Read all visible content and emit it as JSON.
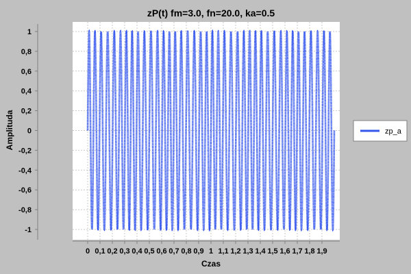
{
  "chart_data": {
    "type": "line",
    "title": "zP(t) fm=3.0, fn=20.0, ka=0.5",
    "xlabel": "Czas",
    "ylabel": "Amplituda",
    "xlim": [
      0,
      2
    ],
    "ylim": [
      -1,
      1
    ],
    "x_ticks": [
      "0",
      "0,1",
      "0,2",
      "0,3",
      "0,4",
      "0,5",
      "0,6",
      "0,7",
      "0,8",
      "0,9",
      "1",
      "1,1",
      "1,2",
      "1,3",
      "1,4",
      "1,5",
      "1,6",
      "1,7",
      "1,8",
      "1,9"
    ],
    "y_ticks": [
      "1",
      "0,8",
      "0,6",
      "0,4",
      "0,2",
      "0",
      "-0,2",
      "-0,4",
      "-0,6",
      "-0,8",
      "-1"
    ],
    "grid": true,
    "legend_position": "right",
    "series": [
      {
        "name": "zp_a",
        "color": "#3355ee",
        "function": "sin(2*pi*20*t + 0.5*sin(2*pi*3*t))",
        "fn": 20.0,
        "fm": 3.0,
        "ka": 0.5,
        "t_start": 0,
        "t_end": 2
      }
    ]
  }
}
